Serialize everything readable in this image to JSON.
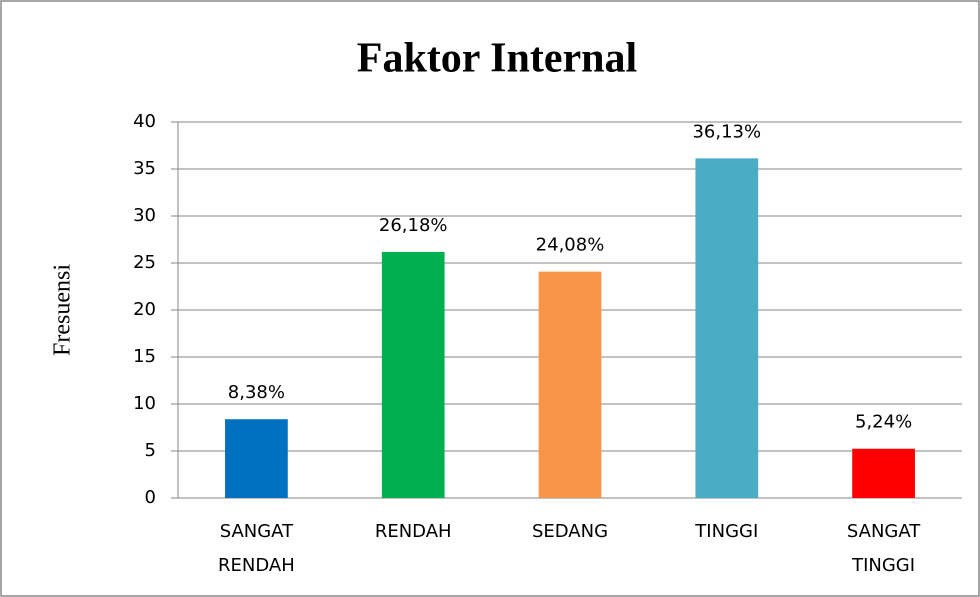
{
  "chart_data": {
    "type": "bar",
    "title": "Faktor Internal",
    "y_label": "Fresuensi",
    "categories": [
      "SANGAT RENDAH",
      "RENDAH",
      "SEDANG",
      "TINGGI",
      "SANGAT TINGGI"
    ],
    "values": [
      8.38,
      26.18,
      24.08,
      36.13,
      5.24
    ],
    "value_labels": [
      "8,38%",
      "26,18%",
      "24,08%",
      "36,13%",
      "5,24%"
    ],
    "colors": [
      "#0070c0",
      "#00b050",
      "#f79646",
      "#4bacc6",
      "#ff0000"
    ],
    "ylim": [
      0,
      40
    ],
    "yticks": [
      0,
      5,
      10,
      15,
      20,
      25,
      30,
      35,
      40
    ],
    "grid": true
  }
}
